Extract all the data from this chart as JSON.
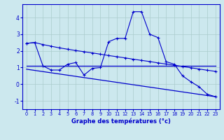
{
  "xlabel": "Graphe des températures (°c)",
  "background_color": "#cce8ee",
  "grid_color": "#aacccc",
  "line_color": "#0000cc",
  "x_ticks": [
    0,
    1,
    2,
    3,
    4,
    5,
    6,
    7,
    8,
    9,
    10,
    11,
    12,
    13,
    14,
    15,
    16,
    17,
    18,
    19,
    20,
    21,
    22,
    23
  ],
  "ylim": [
    -1.5,
    4.8
  ],
  "xlim": [
    -0.5,
    23.5
  ],
  "yticks": [
    -1,
    0,
    1,
    2,
    3,
    4
  ],
  "line1_x": [
    0,
    1,
    2,
    3,
    4,
    5,
    6,
    7,
    8,
    9,
    10,
    11,
    12,
    13,
    14,
    15,
    16,
    17,
    18,
    19,
    20,
    21,
    22,
    23
  ],
  "line1_y": [
    2.45,
    2.5,
    2.38,
    2.28,
    2.18,
    2.1,
    2.02,
    1.95,
    1.88,
    1.8,
    1.72,
    1.65,
    1.58,
    1.5,
    1.43,
    1.36,
    1.28,
    1.21,
    1.14,
    1.06,
    0.99,
    0.91,
    0.84,
    0.77
  ],
  "line2_x": [
    0,
    1,
    2,
    3,
    4,
    5,
    6,
    7,
    8,
    9,
    10,
    11,
    12,
    13,
    14,
    15,
    16,
    17,
    18,
    19,
    20,
    21,
    22,
    23
  ],
  "line2_y": [
    2.45,
    2.5,
    1.1,
    0.85,
    0.85,
    1.2,
    1.3,
    0.55,
    0.95,
    1.0,
    2.55,
    2.75,
    2.75,
    4.35,
    4.35,
    3.0,
    2.8,
    1.35,
    1.2,
    0.5,
    0.15,
    -0.15,
    -0.6,
    -0.75
  ],
  "line3_x": [
    0,
    23
  ],
  "line3_y": [
    1.1,
    1.1
  ],
  "line4_x": [
    0,
    23
  ],
  "line4_y": [
    0.9,
    -0.75
  ]
}
